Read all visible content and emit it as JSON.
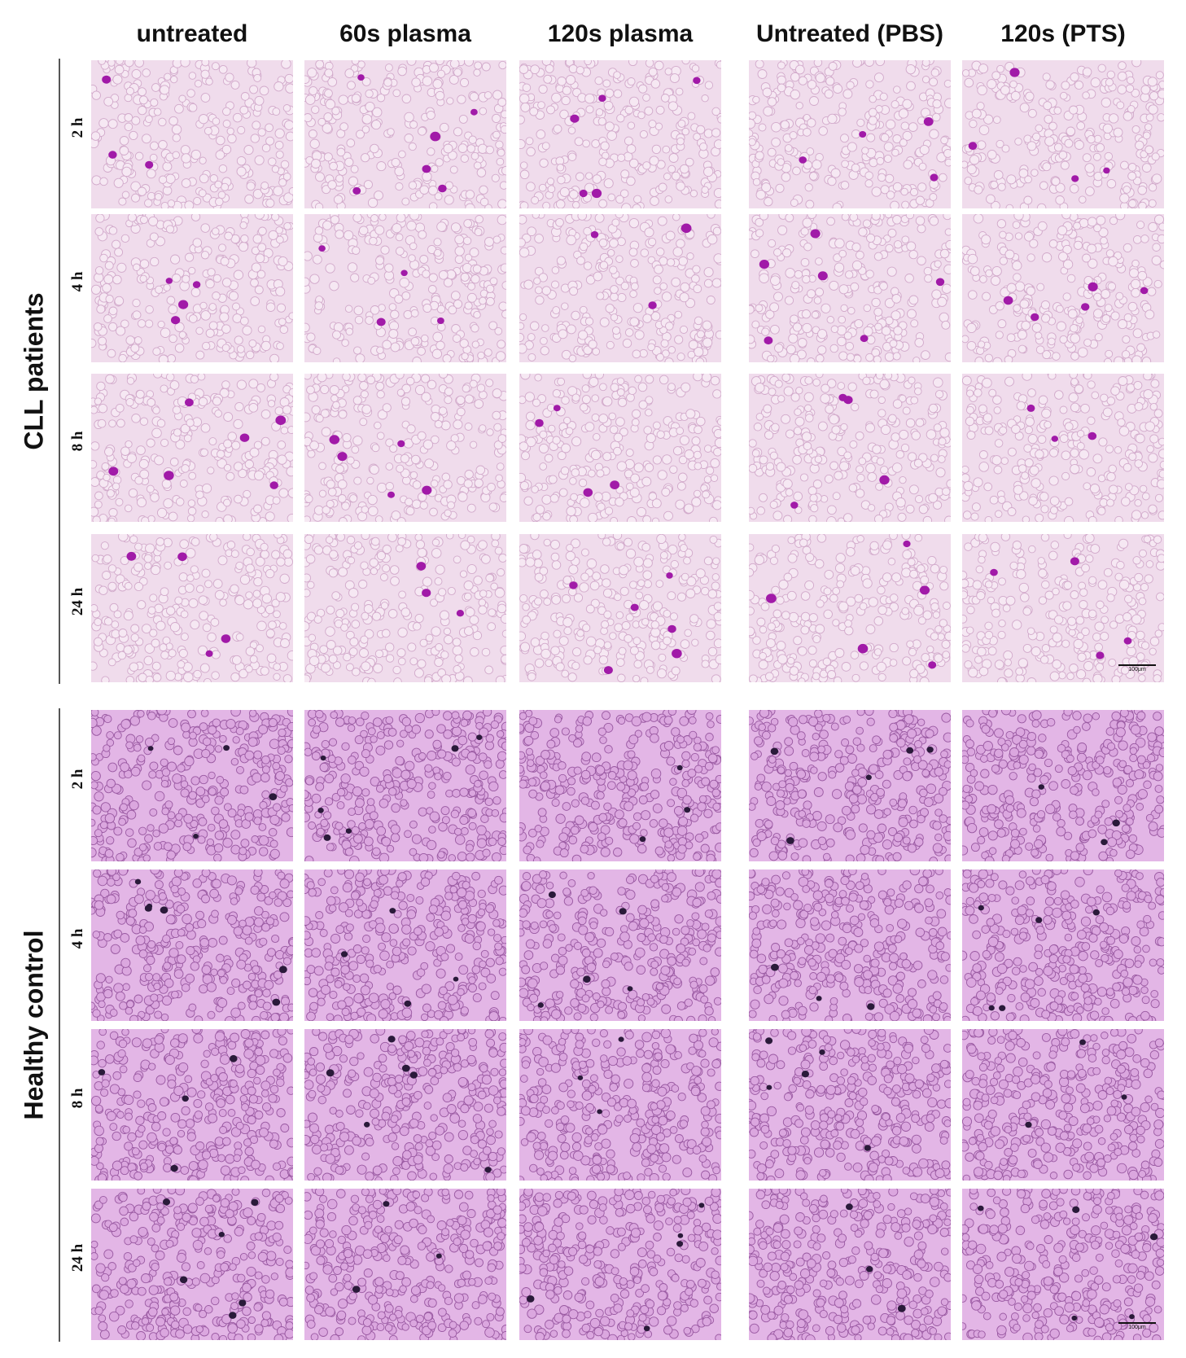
{
  "columns": [
    "untreated",
    "60s plasma",
    "120s plasma",
    "Untreated (PBS)",
    "120s (PTS)"
  ],
  "groups": [
    {
      "label": "CLL patients",
      "rows": [
        "2 h",
        "4 h",
        "8 h",
        "24 h"
      ],
      "bg": "#f0dcec",
      "rbc_fill": "#f6e8f3",
      "rbc_stroke": "#d2aacb",
      "cell_color": "#a11aa8",
      "scale_label": "100μm"
    },
    {
      "label": "Healthy control",
      "rows": [
        "2 h",
        "4 h",
        "8 h",
        "24 h"
      ],
      "bg": "#e3b6e6",
      "rbc_fill": "#dba7df",
      "rbc_stroke": "#9a5aa2",
      "cell_color": "#2a1a3a",
      "scale_label": "100μm"
    }
  ]
}
